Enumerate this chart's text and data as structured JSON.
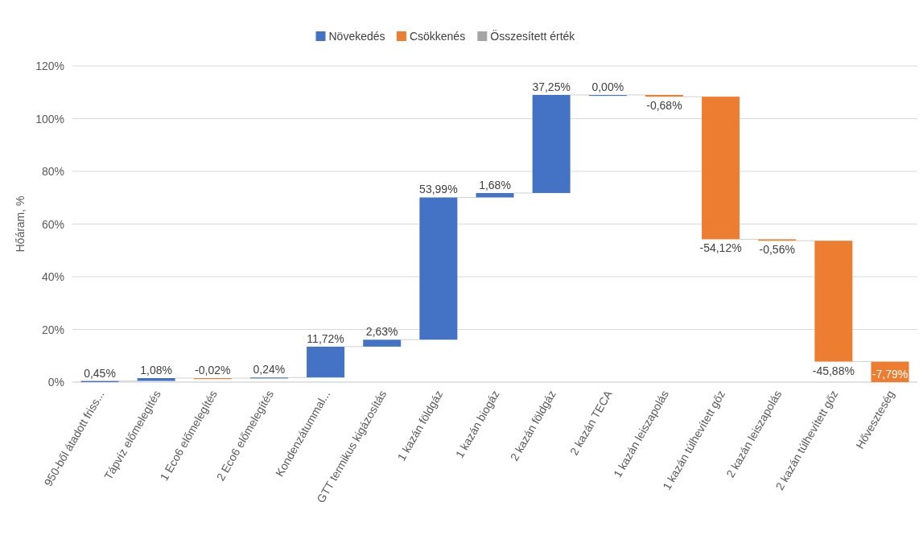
{
  "chart_data": {
    "type": "bar",
    "ylabel": "Hőáram, %",
    "categories": [
      "950-ből átadott friss...",
      "Tápvíz előmelegítés",
      "1 Eco6 előmelegítés",
      "2 Eco6 előmelegítés",
      "Kondenzátummal...",
      "GTT termikus kigázosítás",
      "1 kazán földgáz",
      "1 kazán biogáz",
      "2 kazán földgáz",
      "2 kazán TECA",
      "1 kazán leiszapolás",
      "1 kazán túlhevített gőz",
      "2 kazán leiszapolás",
      "2 kazán túlhevített gőz",
      "Hőveszteség"
    ],
    "series": [
      {
        "name": "Növekedés",
        "color": "#4472c4",
        "base": [
          0,
          0.45,
          null,
          1.51,
          1.75,
          13.47,
          16.1,
          70.09,
          71.77,
          109.02,
          null,
          null,
          null,
          null,
          null
        ],
        "values": [
          0.45,
          1.08,
          null,
          0.24,
          11.72,
          2.63,
          53.99,
          1.68,
          37.25,
          0.0,
          null,
          null,
          null,
          null,
          null
        ],
        "value_labels": [
          "0,45%",
          "1,08%",
          null,
          "0,24%",
          "11,72%",
          "2,63%",
          "53,99%",
          "1,68%",
          "37,25%",
          "0,00%",
          null,
          null,
          null,
          null,
          null
        ]
      },
      {
        "name": "Csökkenés",
        "color": "#ed7d31",
        "base": [
          null,
          null,
          1.53,
          null,
          null,
          null,
          null,
          null,
          null,
          null,
          109.02,
          108.34,
          54.22,
          53.66,
          7.79
        ],
        "values": [
          null,
          null,
          -0.02,
          null,
          null,
          null,
          null,
          null,
          null,
          null,
          -0.68,
          -54.12,
          -0.56,
          -45.88,
          -7.79
        ],
        "value_labels": [
          null,
          null,
          "-0,02%",
          null,
          null,
          null,
          null,
          null,
          null,
          null,
          "-0,68%",
          "-54,12%",
          "-0,56%",
          "-45,88%",
          "-7,79%"
        ]
      },
      {
        "name": "Összesített érték",
        "color": "#a5a5a5",
        "values": [
          null,
          null,
          null,
          null,
          null,
          null,
          null,
          null,
          null,
          null,
          null,
          null,
          null,
          null,
          null
        ]
      }
    ],
    "ylim": [
      0,
      120
    ],
    "yticks": [
      {
        "value": 0,
        "label": "0%"
      },
      {
        "value": 20,
        "label": "20%"
      },
      {
        "value": 40,
        "label": "40%"
      },
      {
        "value": 60,
        "label": "60%"
      },
      {
        "value": 80,
        "label": "80%"
      },
      {
        "value": 100,
        "label": "100%"
      },
      {
        "value": 120,
        "label": "120%"
      }
    ],
    "grid": "y",
    "legend": "top"
  }
}
